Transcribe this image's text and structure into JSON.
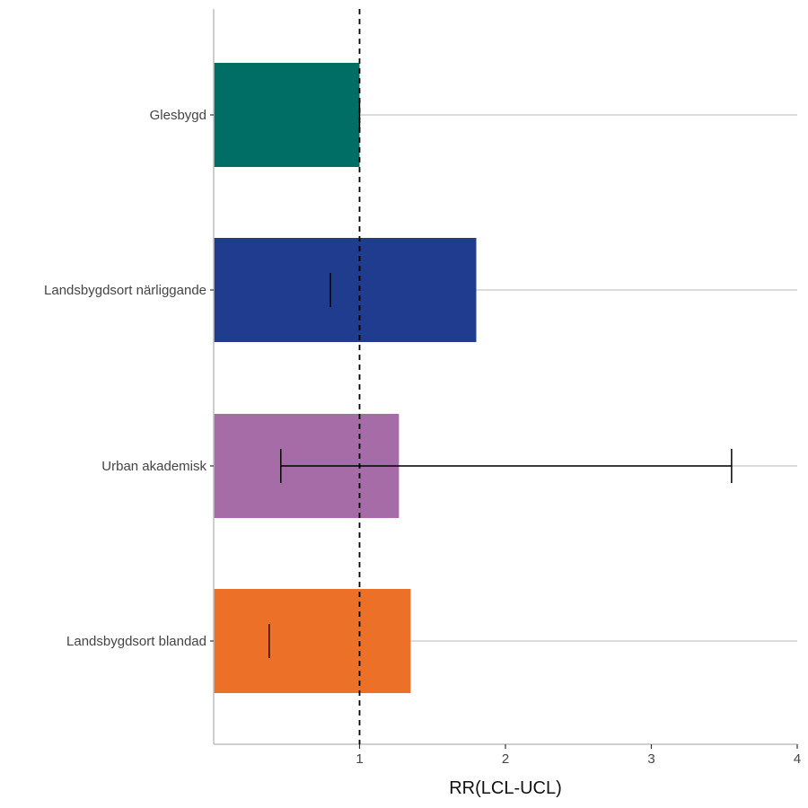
{
  "chart_data": {
    "type": "bar",
    "orientation": "horizontal",
    "categories": [
      "Glesbygd",
      "Landsbygdsort närliggande",
      "Urban akademisk",
      "Landsbygdsort blandad"
    ],
    "values": [
      1.0,
      1.8,
      1.27,
      1.35
    ],
    "error_bars": [
      {
        "lower": 1.0,
        "upper": 1.0
      },
      {
        "lower": 0.8,
        "upper": 0.8
      },
      {
        "lower": 0.46,
        "upper": 3.55
      },
      {
        "lower": 0.38,
        "upper": 0.38
      }
    ],
    "colors": [
      "#006e64",
      "#1f3c8f",
      "#a56ca8",
      "#ec7028"
    ],
    "reference_line": 1,
    "xlabel": "RR(LCL-UCL)",
    "ylabel": "",
    "xlim": [
      0,
      4
    ],
    "xticks": [
      1,
      2,
      3,
      4
    ],
    "grid": "horizontal-major",
    "legend": "none"
  }
}
